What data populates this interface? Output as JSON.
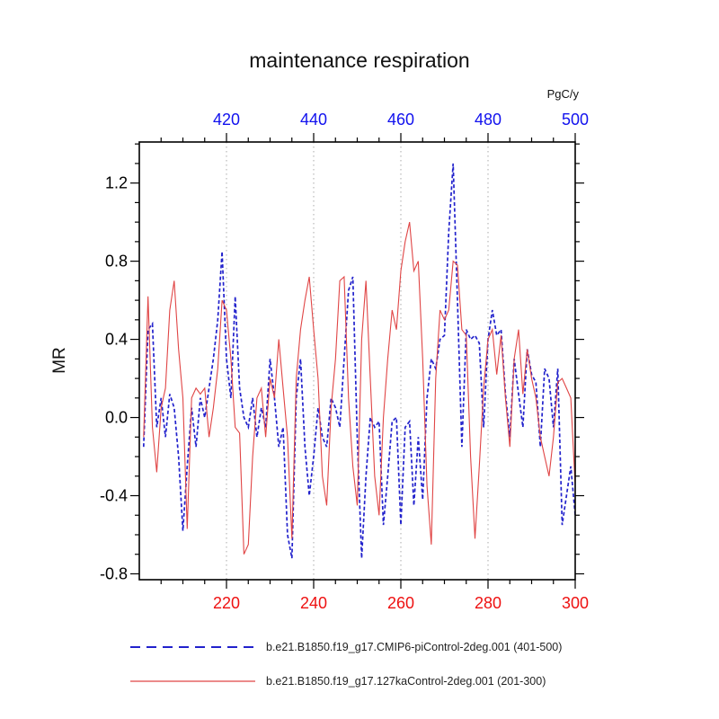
{
  "chart_data": {
    "type": "line",
    "title": "maintenance respiration",
    "ylabel": "MR",
    "xlabel": "",
    "top_axis_unit": "PgC/y",
    "xlim": [
      200,
      300
    ],
    "top_xlim": [
      400,
      500
    ],
    "ylim": [
      -0.83,
      1.41
    ],
    "grid": "vertical-dotted",
    "grid_color": "#aaaaaa",
    "grid_x": [
      220,
      240,
      260,
      280
    ],
    "legend_position": "bottom",
    "x_ticks_bottom": {
      "values": [
        220,
        240,
        260,
        280,
        300
      ],
      "labels": [
        "220",
        "240",
        "260",
        "280",
        "300"
      ],
      "color": "#ee1111"
    },
    "x_ticks_top": {
      "values": [
        420,
        440,
        460,
        480,
        500
      ],
      "labels": [
        "420",
        "440",
        "460",
        "480",
        "500"
      ],
      "color": "#1111ee"
    },
    "y_ticks": {
      "values": [
        -0.8,
        -0.4,
        0.0,
        0.4,
        0.8,
        1.2
      ],
      "labels": [
        "-0.8",
        "-0.4",
        "0.0",
        "0.4",
        "0.8",
        "1.2"
      ],
      "color": "#000000"
    },
    "minor_tick_step_x": 5,
    "minor_tick_step_y": 0.1,
    "series": [
      {
        "name": "b.e21.B1850.f19_g17.CMIP6-piControl-2deg.001 (401-500)",
        "key": "piControl",
        "axis": "top",
        "style": "dashed",
        "color": "#2222cc",
        "x_start": 401,
        "values": [
          -0.15,
          0.45,
          0.48,
          -0.05,
          0.1,
          -0.1,
          0.12,
          0.05,
          -0.2,
          -0.58,
          -0.25,
          0.05,
          -0.15,
          0.1,
          0.0,
          0.15,
          0.3,
          0.5,
          0.85,
          0.3,
          0.1,
          0.62,
          0.15,
          0.0,
          -0.05,
          0.1,
          -0.1,
          0.05,
          -0.05,
          0.3,
          0.1,
          -0.15,
          -0.05,
          -0.6,
          -0.72,
          0.1,
          0.3,
          -0.15,
          -0.4,
          -0.2,
          0.05,
          -0.1,
          -0.15,
          0.1,
          0.05,
          -0.05,
          0.3,
          0.65,
          0.72,
          -0.1,
          -0.72,
          -0.3,
          0.0,
          -0.05,
          -0.02,
          -0.55,
          -0.3,
          -0.02,
          0.0,
          -0.55,
          -0.05,
          -0.02,
          -0.45,
          -0.1,
          -0.42,
          0.1,
          0.3,
          0.25,
          0.4,
          0.42,
          0.95,
          1.3,
          0.6,
          -0.15,
          0.45,
          0.4,
          0.42,
          0.38,
          -0.05,
          0.4,
          0.55,
          0.42,
          0.45,
          0.12,
          -0.1,
          0.3,
          0.12,
          -0.05,
          0.35,
          0.22,
          0.18,
          -0.15,
          0.25,
          0.2,
          -0.05,
          0.25,
          -0.55,
          -0.4,
          -0.25,
          -0.5
        ]
      },
      {
        "name": "b.e21.B1850.f19_g17.127kaControl-2deg.001 (201-300)",
        "key": "127kaControl",
        "axis": "bottom",
        "style": "solid",
        "color": "#e04545",
        "x_start": 201,
        "values": [
          -0.1,
          0.62,
          -0.05,
          -0.28,
          0.05,
          0.15,
          0.55,
          0.7,
          0.35,
          0.1,
          -0.57,
          0.1,
          0.15,
          0.12,
          0.15,
          -0.1,
          0.05,
          0.25,
          0.6,
          0.55,
          0.3,
          -0.05,
          -0.08,
          -0.7,
          -0.65,
          -0.2,
          0.1,
          0.15,
          -0.1,
          0.2,
          0.1,
          0.4,
          0.15,
          -0.1,
          -0.62,
          0.2,
          0.45,
          0.6,
          0.72,
          0.45,
          0.2,
          -0.3,
          -0.45,
          0.05,
          0.3,
          0.7,
          0.72,
          0.1,
          -0.25,
          -0.45,
          0.4,
          0.7,
          0.2,
          -0.3,
          -0.5,
          0.0,
          0.3,
          0.55,
          0.45,
          0.75,
          0.9,
          1.0,
          0.75,
          0.8,
          0.3,
          -0.35,
          -0.65,
          0.2,
          0.55,
          0.5,
          0.55,
          0.8,
          0.78,
          0.45,
          0.42,
          -0.2,
          -0.62,
          -0.25,
          0.15,
          0.4,
          0.45,
          0.22,
          0.42,
          0.1,
          -0.15,
          0.3,
          0.45,
          0.12,
          0.35,
          0.2,
          0.1,
          -0.1,
          -0.2,
          -0.3,
          -0.1,
          0.18,
          0.2,
          0.15,
          0.1,
          -0.35
        ]
      }
    ]
  }
}
